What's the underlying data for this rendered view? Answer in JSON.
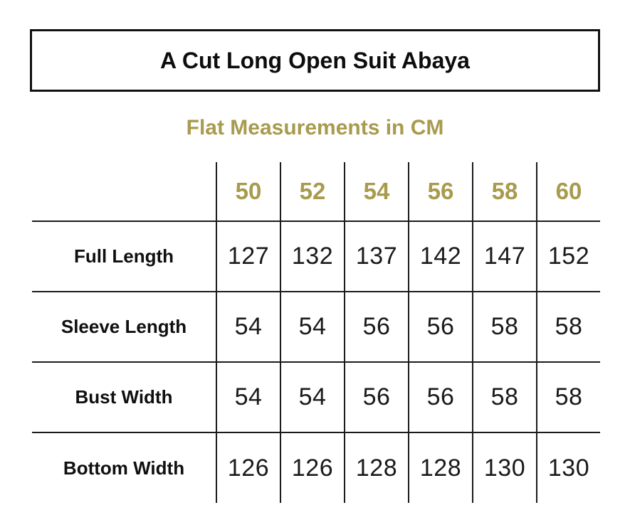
{
  "title": "A Cut Long Open Suit Abaya",
  "subtitle": "Flat Measurements in CM",
  "colors": {
    "accent_gold": "#a89b4d",
    "text_black": "#111111",
    "grid_line": "#1b1b1b",
    "background": "#ffffff"
  },
  "chart_data": {
    "type": "table",
    "title": "A Cut Long Open Suit Abaya",
    "subtitle": "Flat Measurements in CM",
    "unit": "CM",
    "sizes": [
      "50",
      "52",
      "54",
      "56",
      "58",
      "60"
    ],
    "rows": [
      {
        "label": "Full Length",
        "values": [
          "127",
          "132",
          "137",
          "142",
          "147",
          "152"
        ]
      },
      {
        "label": "Sleeve Length",
        "values": [
          "54",
          "54",
          "56",
          "56",
          "58",
          "58"
        ]
      },
      {
        "label": "Bust Width",
        "values": [
          "54",
          "54",
          "56",
          "56",
          "58",
          "58"
        ]
      },
      {
        "label": "Bottom Width",
        "values": [
          "126",
          "126",
          "128",
          "128",
          "130",
          "130"
        ]
      }
    ],
    "layout": {
      "grid": "vertical rules between size columns only; horizontal rules under header and between data rows; no outer border",
      "header_text_color": "#a89b4d"
    }
  }
}
